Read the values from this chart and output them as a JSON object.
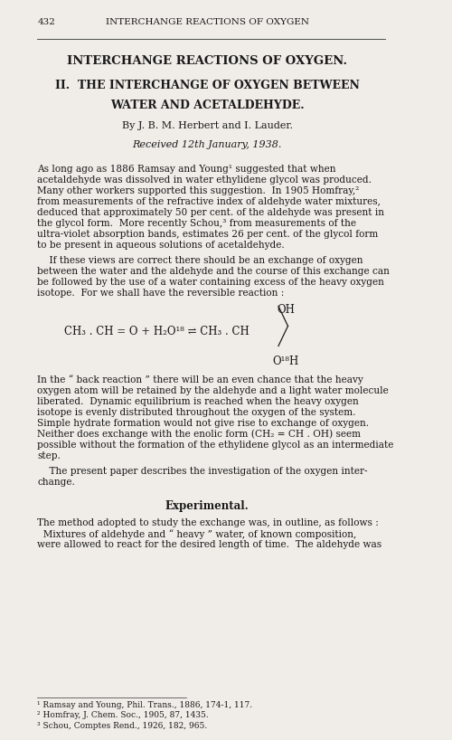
{
  "bg_color": "#f0ede8",
  "text_color": "#1a1a1a",
  "page_number": "432",
  "header": "INTERCHANGE REACTIONS OF OXYGEN",
  "title1": "INTERCHANGE REACTIONS OF OXYGEN.",
  "title2": "II.  THE INTERCHANGE OF OXYGEN BETWEEN",
  "title3": "WATER AND ACETALDEHYDE.",
  "authors": "By J. B. M. Herbert and I. Lauder.",
  "received": "Received 12th January, 1938.",
  "para1_lines": [
    "As long ago as 1886 Ramsay and Young¹ suggested that when",
    "acetaldehyde was dissolved in water ethylidene glycol was produced.",
    "Many other workers supported this suggestion.  In 1905 Homfray,²",
    "from measurements of the refractive index of aldehyde water mixtures,",
    "deduced that approximately 50 per cent. of the aldehyde was present in",
    "the glycol form.  More recently Schou,³ from measurements of the",
    "ultra-violet absorption bands, estimates 26 per cent. of the glycol form",
    "to be present in aqueous solutions of acetaldehyde."
  ],
  "para2_lines": [
    "    If these views are correct there should be an exchange of oxygen",
    "between the water and the aldehyde and the course of this exchange can",
    "be followed by the use of a water containing excess of the heavy oxygen",
    "isotope.  For we shall have the reversible reaction :"
  ],
  "eq_main": "CH₃ . CH = O + H₂O¹⁸ ⇌ CH₃ . CH",
  "eq_oh": "OH",
  "eq_o18h": "O¹⁸H",
  "para3_lines": [
    "In the “ back reaction ” there will be an even chance that the heavy",
    "oxygen atom will be retained by the aldehyde and a light water molecule",
    "liberated.  Dynamic equilibrium is reached when the heavy oxygen",
    "isotope is evenly distributed throughout the oxygen of the system.",
    "Simple hydrate formation would not give rise to exchange of oxygen.",
    "Neither does exchange with the enolic form (CH₂ = CH . OH) seem",
    "possible without the formation of the ethylidene glycol as an intermediate",
    "step."
  ],
  "para4_lines": [
    "    The present paper describes the investigation of the oxygen inter-",
    "change."
  ],
  "section": "Experimental.",
  "para5_lines": [
    "The method adopted to study the exchange was, in outline, as follows :",
    "  Mixtures of aldehyde and “ heavy ” water, of known composition,",
    "were allowed to react for the desired length of time.  The aldehyde was"
  ],
  "footnotes": [
    "¹ Ramsay and Young, Phil. Trans., 1886, 174-1, 117.",
    "² Homfray, J. Chem. Soc., 1905, 87, 1435.",
    "³ Schou, Comptes Rend., 1926, 182, 965."
  ]
}
